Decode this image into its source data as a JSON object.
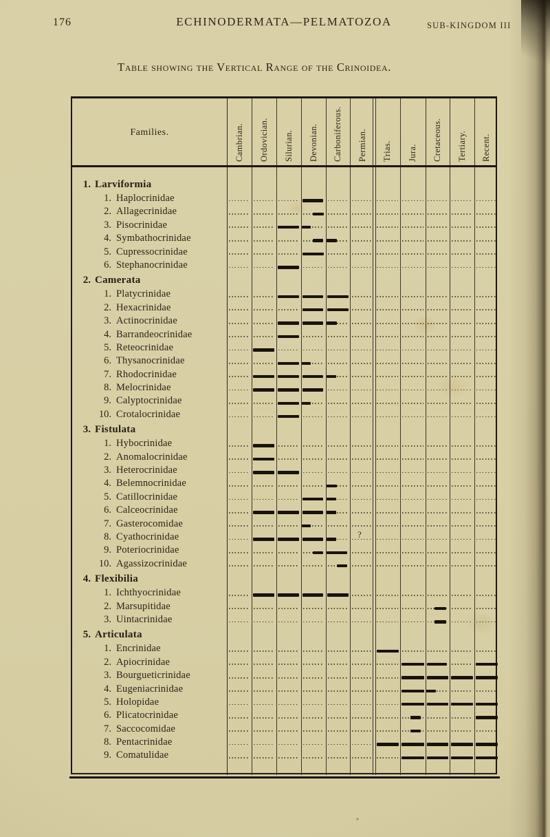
{
  "page": {
    "page_number": "176",
    "running_title": "ECHINODERMATA—PELMATOZOA",
    "running_right": "SUB-KINGDOM III",
    "table_title": "Table showing the Vertical Range of the Crinoidea."
  },
  "table": {
    "families_header": "Families.",
    "columns": [
      "Cambrian.",
      "Ordovician.",
      "Silurian.",
      "Devonian.",
      "Carboniferous.",
      "Permian.",
      "Trias.",
      "Jura.",
      "Cretaceous.",
      "Tertiary.",
      "Recent."
    ],
    "uncertainty_mark": "?",
    "groups": [
      {
        "number": "1.",
        "name": "Larviformia",
        "families": [
          {
            "number": "1.",
            "name": "Haplocrinidae",
            "bars": [
              [
                3.05,
                3.88
              ]
            ]
          },
          {
            "number": "2.",
            "name": "Allagecrinidae",
            "bars": [
              [
                3.46,
                3.92
              ]
            ]
          },
          {
            "number": "3.",
            "name": "Pisocrinidae",
            "bars": [
              [
                2.06,
                2.92
              ],
              [
                3.02,
                3.38
              ]
            ]
          },
          {
            "number": "4.",
            "name": "Symbathocrinidae",
            "bars": [
              [
                3.46,
                3.9
              ],
              [
                4.04,
                4.46
              ]
            ]
          },
          {
            "number": "5.",
            "name": "Cupressocrinidae",
            "bars": [
              [
                3.06,
                3.92
              ]
            ]
          },
          {
            "number": "6.",
            "name": "Stephanocrinidae",
            "bars": [
              [
                2.06,
                2.92
              ]
            ]
          }
        ]
      },
      {
        "number": "2.",
        "name": "Camerata",
        "families": [
          {
            "number": "1.",
            "name": "Platycrinidae",
            "bars": [
              [
                2.06,
                2.92
              ],
              [
                3.05,
                3.9
              ],
              [
                4.06,
                4.94
              ]
            ]
          },
          {
            "number": "2.",
            "name": "Hexacrinidae",
            "bars": [
              [
                3.05,
                3.9
              ],
              [
                4.05,
                4.94
              ]
            ]
          },
          {
            "number": "3.",
            "name": "Actinocrinidae",
            "bars": [
              [
                2.06,
                2.92
              ],
              [
                3.05,
                3.9
              ],
              [
                4.04,
                4.46
              ]
            ]
          },
          {
            "number": "4.",
            "name": "Barrandeocrinidae",
            "bars": [
              [
                2.06,
                2.92
              ]
            ]
          },
          {
            "number": "5.",
            "name": "Reteocrinidae",
            "bars": [
              [
                1.06,
                1.93
              ]
            ]
          },
          {
            "number": "6.",
            "name": "Thysanocrinidae",
            "bars": [
              [
                2.06,
                2.92
              ],
              [
                3.02,
                3.4
              ]
            ]
          },
          {
            "number": "7.",
            "name": "Rhodocrinidae",
            "bars": [
              [
                1.06,
                1.93
              ],
              [
                2.06,
                2.92
              ],
              [
                3.05,
                3.9
              ],
              [
                4.04,
                4.44
              ]
            ]
          },
          {
            "number": "8.",
            "name": "Melocrinidae",
            "bars": [
              [
                1.06,
                1.93
              ],
              [
                2.06,
                2.92
              ],
              [
                3.05,
                3.9
              ]
            ]
          },
          {
            "number": "9.",
            "name": "Calyptocrinidae",
            "bars": [
              [
                2.06,
                2.92
              ],
              [
                3.02,
                3.38
              ]
            ]
          },
          {
            "number": "10.",
            "name": "Crotalocrinidae",
            "bars": [
              [
                2.06,
                2.92
              ]
            ]
          }
        ]
      },
      {
        "number": "3.",
        "name": "Fistulata",
        "families": [
          {
            "number": "1.",
            "name": "Hybocrinidae",
            "bars": [
              [
                1.06,
                1.93
              ]
            ]
          },
          {
            "number": "2.",
            "name": "Anomalocrinidae",
            "bars": [
              [
                1.06,
                1.93
              ]
            ]
          },
          {
            "number": "3.",
            "name": "Heterocrinidae",
            "bars": [
              [
                1.06,
                1.93
              ],
              [
                2.06,
                2.92
              ]
            ]
          },
          {
            "number": "4.",
            "name": "Belemnocrinidae",
            "bars": [
              [
                4.04,
                4.46
              ]
            ]
          },
          {
            "number": "5.",
            "name": "Catillocrinidae",
            "bars": [
              [
                3.05,
                3.9
              ],
              [
                4.04,
                4.44
              ]
            ]
          },
          {
            "number": "6.",
            "name": "Calceocrinidae",
            "bars": [
              [
                1.06,
                1.93
              ],
              [
                2.06,
                2.92
              ],
              [
                3.05,
                3.9
              ],
              [
                4.04,
                4.44
              ]
            ]
          },
          {
            "number": "7.",
            "name": "Gasterocomidae",
            "bars": [
              [
                3.02,
                3.4
              ]
            ]
          },
          {
            "number": "8.",
            "name": "Cyathocrinidae",
            "bars": [
              [
                1.06,
                1.93
              ],
              [
                2.06,
                2.92
              ],
              [
                3.05,
                3.9
              ],
              [
                4.04,
                4.44
              ]
            ],
            "query_at": 5.42
          },
          {
            "number": "9.",
            "name": "Poteriocrinidae",
            "bars": [
              [
                3.46,
                3.9
              ],
              [
                4.02,
                4.9
              ]
            ]
          },
          {
            "number": "10.",
            "name": "Agassizocrinidae",
            "bars": [
              [
                4.46,
                4.88
              ]
            ]
          }
        ]
      },
      {
        "number": "4.",
        "name": "Flexibilia",
        "families": [
          {
            "number": "1.",
            "name": "Ichthyocrinidae",
            "bars": [
              [
                1.06,
                1.93
              ],
              [
                2.06,
                2.92
              ],
              [
                3.05,
                3.9
              ],
              [
                4.05,
                4.94
              ]
            ]
          },
          {
            "number": "2.",
            "name": "Marsupitidae",
            "bars": [
              [
                8.38,
                8.86
              ]
            ]
          },
          {
            "number": "3.",
            "name": "Uintacrinidae",
            "bars": [
              [
                8.38,
                8.86
              ]
            ]
          }
        ]
      },
      {
        "number": "5.",
        "name": "Articulata",
        "families": [
          {
            "number": "1.",
            "name": "Encrinidae",
            "bars": [
              [
                6.08,
                6.94
              ]
            ]
          },
          {
            "number": "2.",
            "name": "Apiocrinidae",
            "bars": [
              [
                7.06,
                7.94
              ],
              [
                8.06,
                8.9
              ],
              [
                10.07,
                10.96
              ]
            ]
          },
          {
            "number": "3.",
            "name": "Bourgueticrinidae",
            "bars": [
              [
                7.06,
                7.94
              ],
              [
                8.06,
                8.94
              ],
              [
                9.06,
                9.94
              ],
              [
                10.07,
                10.96
              ]
            ]
          },
          {
            "number": "4.",
            "name": "Eugeniacrinidae",
            "bars": [
              [
                7.06,
                7.94
              ],
              [
                8.02,
                8.44
              ]
            ]
          },
          {
            "number": "5.",
            "name": "Holopidae",
            "bars": [
              [
                7.06,
                7.94
              ],
              [
                8.06,
                8.94
              ],
              [
                9.06,
                9.94
              ],
              [
                10.07,
                10.96
              ]
            ]
          },
          {
            "number": "6.",
            "name": "Plicatocrinidae",
            "bars": [
              [
                7.4,
                7.82
              ],
              [
                10.07,
                10.96
              ]
            ]
          },
          {
            "number": "7.",
            "name": "Saccocomidae",
            "bars": [
              [
                7.4,
                7.82
              ]
            ]
          },
          {
            "number": "8.",
            "name": "Pentacrinidae",
            "bars": [
              [
                6.08,
                6.94
              ],
              [
                7.06,
                7.94
              ],
              [
                8.06,
                8.94
              ],
              [
                9.06,
                9.94
              ],
              [
                10.07,
                10.96
              ]
            ]
          },
          {
            "number": "9.",
            "name": "Comatulidae",
            "bars": [
              [
                7.06,
                7.94
              ],
              [
                8.06,
                8.94
              ],
              [
                9.06,
                9.94
              ],
              [
                10.07,
                10.96
              ]
            ]
          }
        ]
      }
    ]
  }
}
